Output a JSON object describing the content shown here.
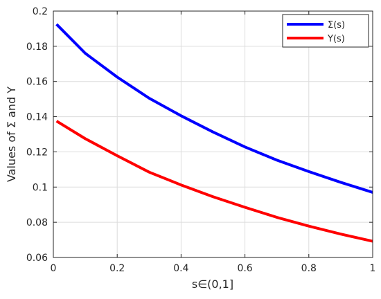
{
  "chart_data": {
    "type": "line",
    "xlabel": "s∈(0,1]",
    "ylabel": "Values of  Σ and  Υ",
    "xlim": [
      0,
      1
    ],
    "ylim": [
      0.06,
      0.2
    ],
    "xticks": [
      "0",
      "0.2",
      "0.4",
      "0.6",
      "0.8",
      "1"
    ],
    "yticks": [
      "0.06",
      "0.08",
      "0.1",
      "0.12",
      "0.14",
      "0.16",
      "0.18",
      "0.2"
    ],
    "grid": true,
    "legend_position": "top-right",
    "series": [
      {
        "name": "Σ(s)",
        "color": "#0000ff",
        "x": [
          0.01,
          0.1,
          0.2,
          0.3,
          0.4,
          0.5,
          0.6,
          0.7,
          0.8,
          0.9,
          1.0
        ],
        "y": [
          0.1925,
          0.176,
          0.1625,
          0.1505,
          0.1405,
          0.1313,
          0.1228,
          0.1153,
          0.1088,
          0.1027,
          0.097
        ]
      },
      {
        "name": "Υ(s)",
        "color": "#ff0000",
        "x": [
          0.01,
          0.1,
          0.2,
          0.3,
          0.4,
          0.5,
          0.6,
          0.7,
          0.8,
          0.9,
          1.0
        ],
        "y": [
          0.1375,
          0.1275,
          0.1178,
          0.1085,
          0.1012,
          0.0945,
          0.0885,
          0.0828,
          0.0778,
          0.0733,
          0.0692
        ]
      }
    ]
  }
}
